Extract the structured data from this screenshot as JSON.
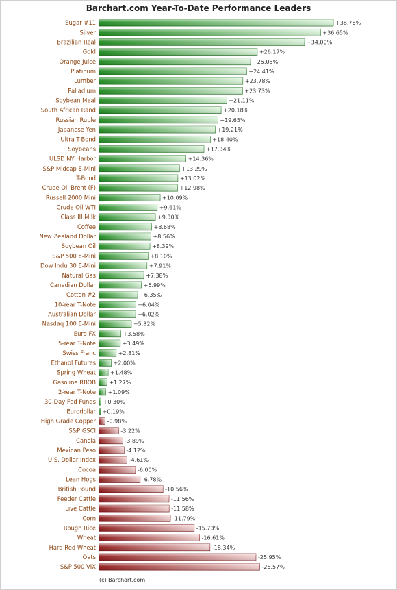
{
  "chart_data": {
    "type": "bar",
    "orientation": "horizontal",
    "title": "Barchart.com Year-To-Date Performance Leaders",
    "credit": "(c) Barchart.com",
    "xlim": [
      -26.57,
      38.76
    ],
    "colors": {
      "positive": "#2a9a2a",
      "negative": "#a52a2a",
      "label": "#8b4513"
    },
    "categories": [
      "Sugar #11",
      "Silver",
      "Brazilian Real",
      "Gold",
      "Orange Juice",
      "Platinum",
      "Lumber",
      "Palladium",
      "Soybean Meal",
      "South African Rand",
      "Russian Ruble",
      "Japanese Yen",
      "Ultra T-Bond",
      "Soybeans",
      "ULSD NY Harbor",
      "S&P Midcap E-Mini",
      "T-Bond",
      "Crude Oil Brent (F)",
      "Russell 2000 Mini",
      "Crude Oil WTI",
      "Class III Milk",
      "Coffee",
      "New Zealand Dollar",
      "Soybean Oil",
      "S&P 500 E-Mini",
      "Dow Indu 30 E-Mini",
      "Natural Gas",
      "Canadian Dollar",
      "Cotton #2",
      "10-Year T-Note",
      "Australian Dollar",
      "Nasdaq 100 E-Mini",
      "Euro FX",
      "5-Year T-Note",
      "Swiss Franc",
      "Ethanol Futures",
      "Spring Wheat",
      "Gasoline RBOB",
      "2-Year T-Note",
      "30-Day Fed Funds",
      "Eurodollar",
      "High Grade Copper",
      "S&P GSCI",
      "Canola",
      "Mexican Peso",
      "U.S. Dollar Index",
      "Cocoa",
      "Lean Hogs",
      "British Pound",
      "Feeder Cattle",
      "Live Cattle",
      "Corn",
      "Rough Rice",
      "Wheat",
      "Hard Red Wheat",
      "Oats",
      "S&P 500 VIX"
    ],
    "values": [
      38.76,
      36.65,
      34.0,
      26.17,
      25.05,
      24.41,
      23.78,
      23.73,
      21.11,
      20.18,
      19.65,
      19.21,
      18.4,
      17.34,
      14.36,
      13.29,
      13.02,
      12.98,
      10.09,
      9.61,
      9.3,
      8.68,
      8.56,
      8.39,
      8.1,
      7.91,
      7.38,
      6.99,
      6.35,
      6.04,
      6.02,
      5.32,
      3.58,
      3.49,
      2.81,
      2.0,
      1.48,
      1.27,
      1.09,
      0.3,
      0.19,
      -0.98,
      -3.22,
      -3.89,
      -4.12,
      -4.61,
      -6.0,
      -6.78,
      -10.56,
      -11.56,
      -11.58,
      -11.79,
      -15.73,
      -16.61,
      -18.34,
      -25.95,
      -26.57
    ],
    "value_labels": [
      "+38.76%",
      "+36.65%",
      "+34.00%",
      "+26.17%",
      "+25.05%",
      "+24.41%",
      "+23.78%",
      "+23.73%",
      "+21.11%",
      "+20.18%",
      "+19.65%",
      "+19.21%",
      "+18.40%",
      "+17.34%",
      "+14.36%",
      "+13.29%",
      "+13.02%",
      "+12.98%",
      "+10.09%",
      "+9.61%",
      "+9.30%",
      "+8.68%",
      "+8.56%",
      "+8.39%",
      "+8.10%",
      "+7.91%",
      "+7.38%",
      "+6.99%",
      "+6.35%",
      "+6.04%",
      "+6.02%",
      "+5.32%",
      "+3.58%",
      "+3.49%",
      "+2.81%",
      "+2.00%",
      "+1.48%",
      "+1.27%",
      "+1.09%",
      "+0.30%",
      "+0.19%",
      "-0.98%",
      "-3.22%",
      "-3.89%",
      "-4.12%",
      "-4.61%",
      "-6.00%",
      "-6.78%",
      "-10.56%",
      "-11.56%",
      "-11.58%",
      "-11.79%",
      "-15.73%",
      "-16.61%",
      "-18.34%",
      "-25.95%",
      "-26.57%"
    ],
    "grid": false,
    "legend": "none"
  }
}
